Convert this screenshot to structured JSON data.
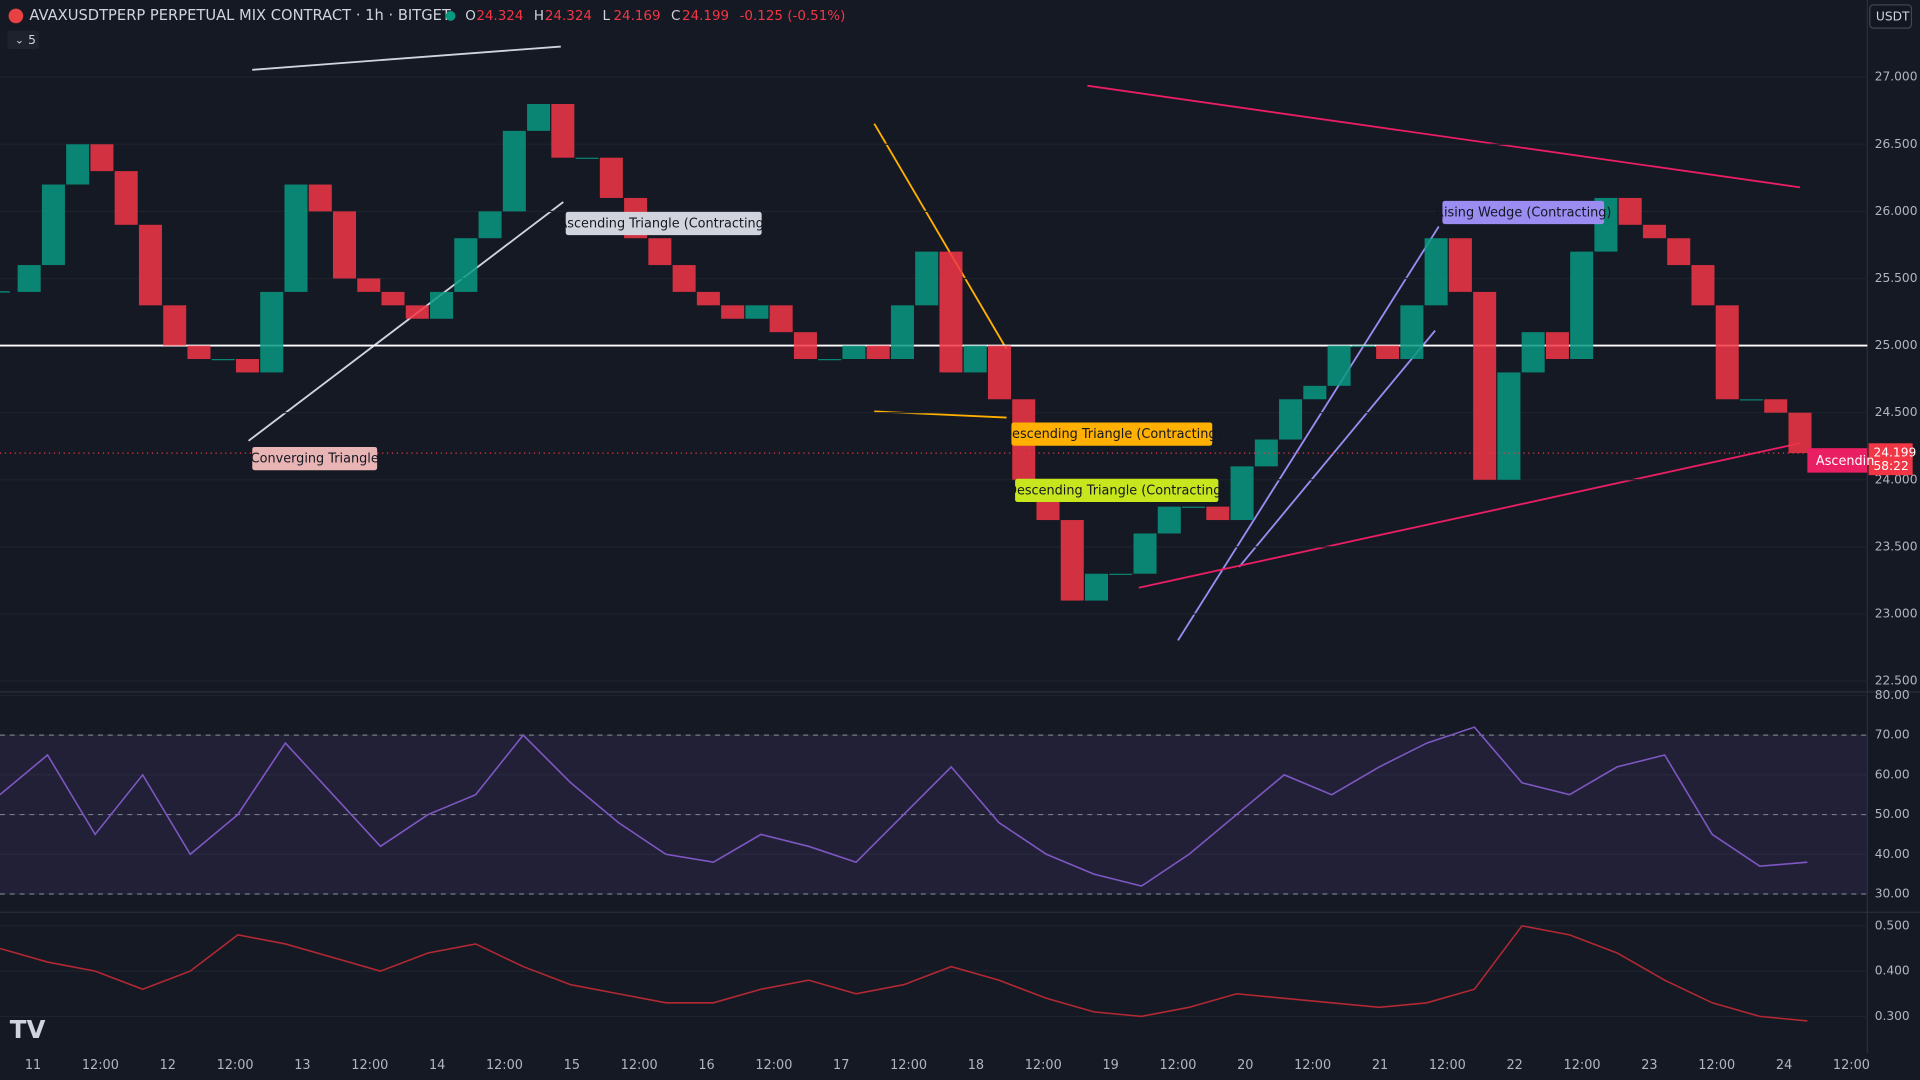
{
  "header": {
    "symbol": "AVAXUSDTPERP PERPETUAL MIX CONTRACT · 1h · BITGET",
    "ohlc": [
      {
        "label": "O",
        "value": 24.324
      },
      {
        "label": "H",
        "value": 24.324
      },
      {
        "label": "L",
        "value": 24.169
      },
      {
        "label": "C",
        "value": 24.199
      }
    ],
    "change": "-0.125 (-0.51%)",
    "indicator_count": "5",
    "currency": "USDT"
  },
  "time_axis": [
    "11",
    "12:00",
    "12",
    "12:00",
    "13",
    "12:00",
    "14",
    "12:00",
    "15",
    "12:00",
    "16",
    "12:00",
    "17",
    "12:00",
    "18",
    "12:00",
    "19",
    "12:00",
    "20",
    "12:00",
    "21",
    "12:00",
    "22",
    "12:00",
    "23",
    "12:00",
    "24",
    "12:00"
  ],
  "chart_data": [
    {
      "type": "candlestick",
      "up_color": "#089981",
      "down_color": "#f23645",
      "series": [
        {
          "values": [
            25.4,
            25.6,
            26.2,
            26.5,
            26.3,
            25.9,
            25.3,
            25.0,
            24.9,
            24.9,
            24.8,
            25.4,
            26.2,
            26.0,
            25.5,
            25.4,
            25.3,
            25.2,
            25.4,
            25.8,
            26.0,
            26.6,
            26.8,
            26.4,
            26.4,
            26.1,
            25.8,
            25.6,
            25.4,
            25.3,
            25.2,
            25.3,
            25.1,
            24.9,
            24.9,
            25.0,
            24.9,
            25.3,
            25.7,
            24.8,
            25.0,
            24.6,
            24.0,
            23.7,
            23.1,
            23.3,
            23.3,
            23.6,
            23.8,
            23.8,
            23.7,
            24.1,
            24.3,
            24.6,
            24.7,
            25.0,
            25.0,
            24.9,
            25.3,
            25.8,
            25.4,
            24.0,
            24.8,
            25.1,
            24.9,
            25.7,
            26.1,
            25.9,
            25.8,
            25.6,
            25.3,
            24.6,
            24.6,
            24.5,
            24.199
          ]
        }
      ],
      "ylim": [
        22.42,
        27.575
      ],
      "yticks": [
        {
          "value": 22.5,
          "label": "22.500"
        },
        {
          "value": 23,
          "label": "23.000"
        },
        {
          "value": 23.5,
          "label": "23.500"
        },
        {
          "value": 24,
          "label": "24.000"
        },
        {
          "value": 24.5,
          "label": "24.500"
        },
        {
          "value": 25,
          "label": "25.000"
        },
        {
          "value": 25.5,
          "label": "25.500"
        },
        {
          "value": 26,
          "label": "26.000"
        },
        {
          "value": 26.5,
          "label": "26.500"
        },
        {
          "value": 27,
          "label": "27.000"
        }
      ],
      "hline": 25,
      "last_price": 24.199,
      "countdown": "58:22",
      "patterns": [
        "Converging Triangle",
        "Ascending Triangle (Contracting)",
        "Descending Triangle (Contracting)",
        "Descending Triangle (Contracting)",
        "Rising Wedge (Contracting)",
        "Ascendin"
      ]
    },
    {
      "type": "line",
      "color": "#7e57c2",
      "values": [
        55,
        65,
        45,
        60,
        40,
        50,
        68,
        55,
        42,
        50,
        55,
        70,
        58,
        48,
        40,
        38,
        45,
        42,
        38,
        50,
        62,
        48,
        40,
        35,
        32,
        40,
        50,
        60,
        55,
        62,
        68,
        72,
        58,
        55,
        62,
        65,
        45,
        37,
        38
      ],
      "ylim": [
        25.4,
        80.9
      ],
      "bands": [
        30,
        50,
        70
      ],
      "yticks": [
        {
          "value": 30,
          "label": "30.00"
        },
        {
          "value": 40,
          "label": "40.00"
        },
        {
          "value": 50,
          "label": "50.00"
        },
        {
          "value": 60,
          "label": "60.00"
        },
        {
          "value": 70,
          "label": "70.00"
        },
        {
          "value": 80,
          "label": "80.00"
        }
      ]
    },
    {
      "type": "line",
      "color": "#b22833",
      "values": [
        0.45,
        0.42,
        0.4,
        0.36,
        0.4,
        0.48,
        0.46,
        0.43,
        0.4,
        0.44,
        0.46,
        0.41,
        0.37,
        0.35,
        0.33,
        0.33,
        0.36,
        0.38,
        0.35,
        0.37,
        0.41,
        0.38,
        0.34,
        0.31,
        0.3,
        0.32,
        0.35,
        0.34,
        0.33,
        0.32,
        0.33,
        0.36,
        0.5,
        0.48,
        0.44,
        0.38,
        0.33,
        0.3,
        0.29
      ],
      "ylim": [
        0.219,
        0.53
      ],
      "yticks": [
        {
          "value": 0.3,
          "label": "0.300"
        },
        {
          "value": 0.4,
          "label": "0.400"
        },
        {
          "value": 0.5,
          "label": "0.500"
        }
      ]
    }
  ]
}
